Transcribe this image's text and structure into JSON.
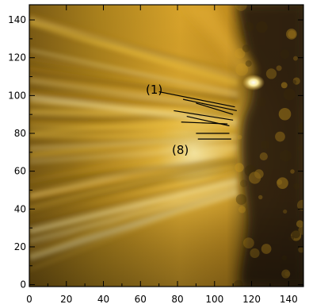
{
  "image": {
    "description_free": true,
    "colormap": [
      "#1e1608",
      "#3a2a08",
      "#6b4d0c",
      "#a67a12",
      "#d4a020",
      "#f3c844",
      "#fff0b0"
    ]
  },
  "axes": {
    "x_ticks": [
      "0",
      "20",
      "40",
      "60",
      "80",
      "100",
      "120",
      "140"
    ],
    "y_ticks": [
      "0",
      "20",
      "40",
      "60",
      "80",
      "100",
      "120",
      "140"
    ],
    "x_range": [
      0,
      148
    ],
    "y_range": [
      -1,
      148
    ]
  },
  "annotations": {
    "label_first": "(1)",
    "label_last": "(8)"
  },
  "slits": [
    {
      "x1": 70,
      "y1": 102,
      "x2": 111,
      "y2": 94
    },
    {
      "x1": 83,
      "y1": 98,
      "x2": 112,
      "y2": 92
    },
    {
      "x1": 90,
      "y1": 96,
      "x2": 110,
      "y2": 90
    },
    {
      "x1": 78,
      "y1": 92,
      "x2": 110,
      "y2": 87
    },
    {
      "x1": 85,
      "y1": 89,
      "x2": 108,
      "y2": 84
    },
    {
      "x1": 82,
      "y1": 86,
      "x2": 107,
      "y2": 85
    },
    {
      "x1": 90,
      "y1": 80,
      "x2": 108,
      "y2": 80
    },
    {
      "x1": 91,
      "y1": 77,
      "x2": 109,
      "y2": 77
    }
  ]
}
